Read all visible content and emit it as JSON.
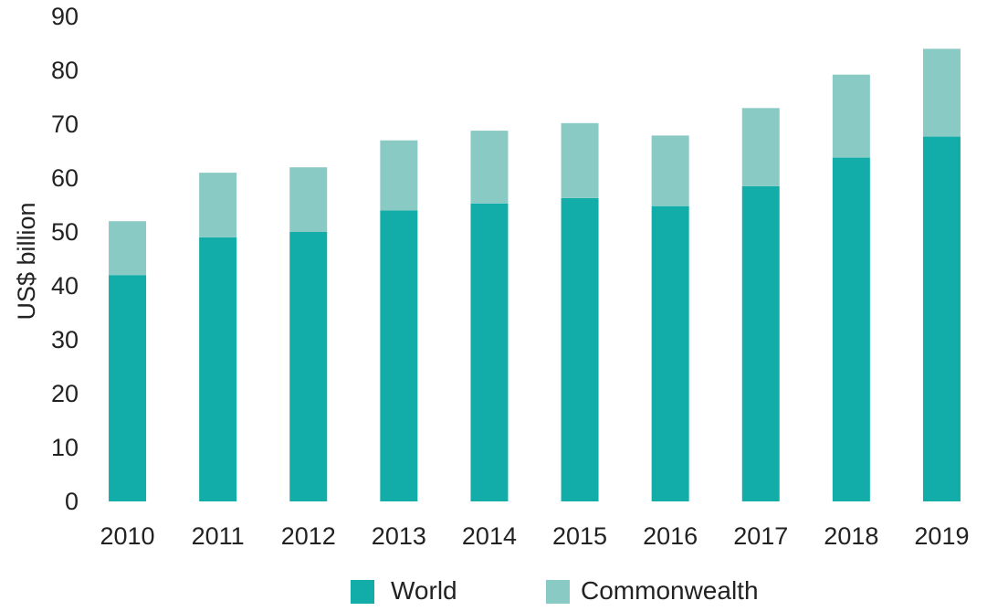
{
  "chart_data": {
    "type": "bar",
    "stacked": true,
    "categories": [
      "2010",
      "2011",
      "2012",
      "2013",
      "2014",
      "2015",
      "2016",
      "2017",
      "2018",
      "2019"
    ],
    "series": [
      {
        "name": "World",
        "color": "#12ADA8",
        "values": [
          42,
          49,
          50,
          54,
          55.3,
          56.3,
          54.8,
          58.5,
          63.8,
          67.7
        ]
      },
      {
        "name": "Commonwealth",
        "color": "#8ACAC5",
        "values": [
          10,
          12,
          12,
          13,
          13.5,
          13.9,
          13.1,
          14.5,
          15.4,
          16.3
        ]
      }
    ],
    "title": "",
    "xlabel": "",
    "ylabel": "US$ billion",
    "ylim": [
      0,
      90
    ],
    "yticks": [
      "0",
      "10",
      "20",
      "30",
      "40",
      "50",
      "60",
      "70",
      "80",
      "90"
    ],
    "grid": false,
    "legend_position": "bottom"
  }
}
